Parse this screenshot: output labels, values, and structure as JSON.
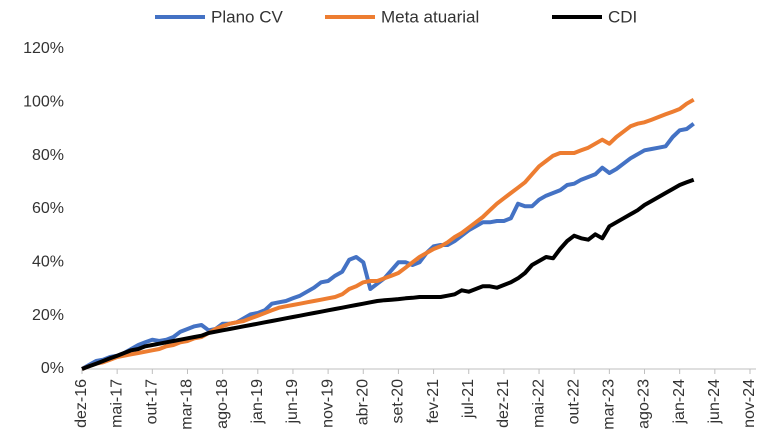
{
  "chart_data": {
    "type": "line",
    "categories": [
      "dez-16",
      null,
      null,
      null,
      null,
      "mai-17",
      null,
      null,
      null,
      null,
      "out-17",
      null,
      null,
      null,
      null,
      "mar-18",
      null,
      null,
      null,
      null,
      "ago-18",
      null,
      null,
      null,
      null,
      "jan-19",
      null,
      null,
      null,
      null,
      "jun-19",
      null,
      null,
      null,
      null,
      "nov-19",
      null,
      null,
      null,
      null,
      "abr-20",
      null,
      null,
      null,
      null,
      "set-20",
      null,
      null,
      null,
      null,
      "fev-21",
      null,
      null,
      null,
      null,
      "jul-21",
      null,
      null,
      null,
      null,
      "dez-21",
      null,
      null,
      null,
      null,
      "mai-22",
      null,
      null,
      null,
      null,
      "out-22",
      null,
      null,
      null,
      null,
      "mar-23",
      null,
      null,
      null,
      null,
      "ago-23",
      null,
      null,
      null,
      null,
      "jan-24",
      null,
      null,
      null,
      null,
      "jun-24",
      null,
      null,
      null,
      null,
      "nov-24"
    ],
    "series": [
      {
        "name": "Plano CV",
        "color": "#4472c4",
        "values": [
          0,
          1.5,
          3,
          3.5,
          4.5,
          5,
          6,
          7.5,
          9,
          10,
          11,
          10.5,
          11,
          12,
          14,
          15,
          16,
          16.5,
          14.5,
          15,
          17,
          17,
          17.5,
          19,
          20.5,
          21,
          22,
          24.5,
          25,
          25.5,
          26.5,
          27.5,
          29,
          30.5,
          32.5,
          33,
          35,
          36.5,
          41,
          42,
          40,
          30,
          32,
          34,
          37,
          40,
          40,
          39,
          40,
          43.5,
          46,
          46.5,
          46.5,
          48,
          50,
          52,
          53.5,
          55,
          55,
          55.5,
          55.5,
          56.5,
          62,
          61,
          61,
          63.5,
          65,
          66,
          67,
          69,
          69.5,
          71,
          72,
          73,
          75.5,
          73.5,
          75,
          77,
          79,
          80.5,
          82,
          82.5,
          83,
          83.5,
          87,
          89.5,
          90,
          92,
          null,
          null,
          null,
          null,
          null,
          null,
          null,
          null
        ]
      },
      {
        "name": "Meta atuarial",
        "color": "#ed7d31",
        "values": [
          0,
          1,
          2,
          2.5,
          3.5,
          4.5,
          5,
          5.5,
          6,
          6.5,
          7,
          7.5,
          8.5,
          9,
          10,
          10.5,
          11.5,
          12,
          13.5,
          15,
          16,
          17,
          17.5,
          18,
          19,
          20,
          21,
          22,
          23,
          23.5,
          24,
          24.5,
          25,
          25.5,
          26,
          26.5,
          27,
          28,
          30,
          31,
          32.5,
          33,
          33,
          34,
          35,
          36,
          38,
          40,
          42,
          43.5,
          45,
          46,
          47.5,
          49.5,
          51,
          53,
          55,
          57,
          59.5,
          62,
          64,
          66,
          68,
          70,
          73,
          76,
          78,
          80,
          81,
          81,
          81,
          82,
          83,
          84.5,
          86,
          84.5,
          87,
          89,
          91,
          92,
          92.5,
          93.5,
          94.5,
          95.5,
          96.5,
          97.5,
          99.5,
          101,
          null,
          null,
          null,
          null,
          null,
          null,
          null,
          null
        ]
      },
      {
        "name": "CDI",
        "color": "#000000",
        "values": [
          0,
          1,
          2,
          3,
          4,
          5,
          6,
          7,
          7.5,
          8.5,
          9,
          9.5,
          10,
          10.5,
          11,
          11.5,
          12,
          12.5,
          13.5,
          14,
          14.5,
          15,
          15.5,
          16,
          16.5,
          17,
          17.5,
          18,
          18.5,
          19,
          19.5,
          20,
          20.5,
          21,
          21.5,
          22,
          22.5,
          23,
          23.5,
          24,
          24.5,
          25,
          25.5,
          25.8,
          26,
          26.2,
          26.5,
          26.7,
          27,
          27,
          27,
          27,
          27.5,
          28,
          29.5,
          29,
          30,
          31,
          31,
          30.5,
          31.5,
          32.5,
          34,
          36,
          39,
          40.5,
          42,
          41.5,
          45,
          48,
          50,
          49,
          48.5,
          50.5,
          49,
          53.5,
          55,
          56.5,
          58,
          59.5,
          61.5,
          63,
          64.5,
          66,
          67.5,
          69,
          70,
          71,
          null,
          null,
          null,
          null,
          null,
          null,
          null,
          null
        ]
      }
    ],
    "ylim": [
      0,
      120
    ],
    "yticks": [
      {
        "value": 0,
        "label": "0%"
      },
      {
        "value": 20,
        "label": "20%"
      },
      {
        "value": 40,
        "label": "40%"
      },
      {
        "value": 60,
        "label": "60%"
      },
      {
        "value": 80,
        "label": "80%"
      },
      {
        "value": 100,
        "label": "100%"
      },
      {
        "value": 120,
        "label": "120%"
      }
    ],
    "legend": "top"
  }
}
